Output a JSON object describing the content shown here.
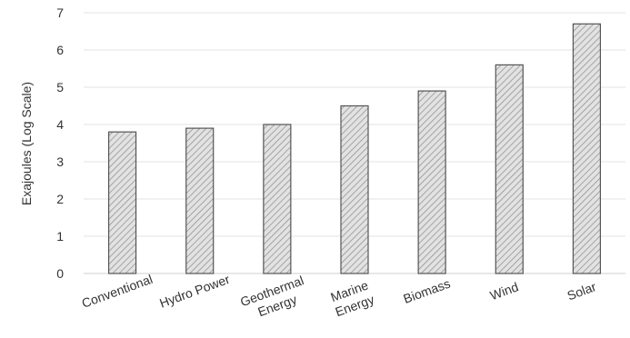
{
  "chart_data": {
    "type": "bar",
    "categories": [
      "Conventional",
      "Hydro Power",
      "Geothermal\nEnergy",
      "Marine\nEnergy",
      "Biomass",
      "Wind",
      "Solar"
    ],
    "values": [
      3.8,
      3.9,
      4.0,
      4.5,
      4.9,
      5.6,
      6.7
    ],
    "title": "",
    "xlabel": "",
    "ylabel": "Exajoules (Log Scale)",
    "ylim": [
      0,
      7
    ],
    "yticks": [
      0,
      1,
      2,
      3,
      4,
      5,
      6,
      7
    ],
    "grid": true,
    "legend": "none",
    "bar_fill": "#d9d9d9",
    "bar_stroke": "#555555",
    "hatch_color": "#888888"
  }
}
